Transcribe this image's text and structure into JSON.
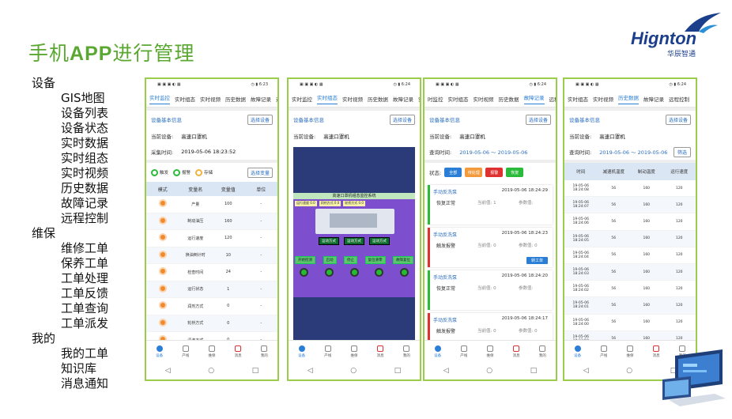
{
  "slide": {
    "title_cn1": "手机",
    "title_app": "APP",
    "title_cn2": "进行管理",
    "logo": "Hignton",
    "logo_sub": "华辰智通"
  },
  "menu": [
    {
      "type": "grp",
      "text": "设备"
    },
    {
      "type": "sub",
      "text": "GIS地图"
    },
    {
      "type": "sub",
      "text": "设备列表"
    },
    {
      "type": "sub",
      "text": "设备状态"
    },
    {
      "type": "sub",
      "text": "实时数据"
    },
    {
      "type": "sub",
      "text": "实时组态"
    },
    {
      "type": "sub",
      "text": "实时视频"
    },
    {
      "type": "sub",
      "text": "历史数据"
    },
    {
      "type": "sub",
      "text": "故障记录"
    },
    {
      "type": "sub",
      "text": "远程控制"
    },
    {
      "type": "grp",
      "text": "维保"
    },
    {
      "type": "sub",
      "text": "维修工单"
    },
    {
      "type": "sub",
      "text": "保养工单"
    },
    {
      "type": "sub",
      "text": "工单处理"
    },
    {
      "type": "sub",
      "text": "工单反馈"
    },
    {
      "type": "sub",
      "text": "工单查询"
    },
    {
      "type": "sub",
      "text": "工单派发"
    },
    {
      "type": "grp",
      "text": "我的"
    },
    {
      "type": "sub",
      "text": "我的工单"
    },
    {
      "type": "sub",
      "text": "知识库"
    },
    {
      "type": "sub",
      "text": "消息通知"
    }
  ],
  "nav": [
    "设备",
    "产线",
    "维保",
    "消息",
    "我的"
  ],
  "phone1": {
    "time": "6:23",
    "tabs": [
      "实时监控",
      "实时组态",
      "实时视频",
      "历史数据",
      "故障记录",
      "远程"
    ],
    "section": "设备基本信息",
    "select_btn": "选择设备",
    "device_label": "当前设备:",
    "device_value": "高速口罩机",
    "time_label": "采集时间:",
    "time_value": "2019-05-06 18:23:52",
    "legend": [
      "触发",
      "报警",
      "存储"
    ],
    "select_var": "选择变量",
    "headers": [
      "模式",
      "变量名",
      "变量值",
      "单位"
    ],
    "rows": [
      {
        "name": "产量",
        "value": "100",
        "unit": "-"
      },
      {
        "name": "制动油压",
        "value": "160",
        "unit": "-"
      },
      {
        "name": "运行速度",
        "value": "120",
        "unit": "-"
      },
      {
        "name": "换油倒计时",
        "value": "10",
        "unit": "-"
      },
      {
        "name": "检查时间",
        "value": "24",
        "unit": "-"
      },
      {
        "name": "运行状态",
        "value": "1",
        "unit": "-"
      },
      {
        "name": "润剂方式",
        "value": "0",
        "unit": "-"
      },
      {
        "name": "轮桥方式",
        "value": "0",
        "unit": "-"
      },
      {
        "name": "清洗方式",
        "value": "0",
        "unit": "-"
      }
    ]
  },
  "phone2": {
    "time": "6:24",
    "tabs": [
      "实时监控",
      "实时组态",
      "实时视频",
      "历史数据",
      "故障记录",
      "实时"
    ],
    "section": "设备基本信息",
    "select_btn": "选择设备",
    "device_label": "当前设备:",
    "device_value": "高速口罩机",
    "scada_title": "高速口罩机组态监控系统",
    "scada_bar": [
      "运行速度 0.0",
      "润剂方式 0.0",
      "轮桥方式 0.0"
    ],
    "btns": [
      "运动方式",
      "运动方式",
      "运动方式"
    ],
    "btns2": [
      "开始检测",
      "启动",
      "停止",
      "复位清零",
      "故障复位"
    ]
  },
  "phone3": {
    "time": "6:24",
    "tabs": [
      "时监控",
      "实时组态",
      "实时视频",
      "历史数据",
      "故障记录",
      "远程控制"
    ],
    "section": "设备基本信息",
    "select_btn": "选择设备",
    "device_label": "当前设备:",
    "device_value": "高速口罩机",
    "query_label": "查询时间:",
    "query_value": "2019-05-06 ～ 2019-05-06",
    "status_label": "状态:",
    "status_btns": [
      {
        "text": "全部",
        "color": "#2a7ed6"
      },
      {
        "text": "待处理",
        "color": "#f39a3d"
      },
      {
        "text": "报警",
        "color": "#e03131"
      },
      {
        "text": "恢复",
        "color": "#2bbb3a"
      }
    ],
    "cards": [
      {
        "title": "手动反洗泵",
        "time": "2019-05-06 18:24:29",
        "status": "恢复正常",
        "ph": "当前值: 1",
        "ph2": "参数值:",
        "turn": "",
        "red": false
      },
      {
        "title": "手动反洗泵",
        "time": "2019-05-06 18:24:23",
        "status": "触发报警",
        "ph": "当前值: 0",
        "ph2": "参数值: 0",
        "turn": "转工单",
        "red": true
      },
      {
        "title": "手动反洗泵",
        "time": "2019-05-06 18:24:20",
        "status": "恢复正常",
        "ph": "当前值: 0",
        "ph2": "参数值:",
        "turn": "",
        "red": false
      },
      {
        "title": "手动反洗泵",
        "time": "2019-05-06 18:24:17",
        "status": "触发报警",
        "ph": "当前值: 0",
        "ph2": "参数值: 0",
        "turn": "转工单",
        "red": true
      }
    ]
  },
  "phone4": {
    "time": "6:24",
    "tabs": [
      "实时组态",
      "实时视频",
      "历史数据",
      "故障记录",
      "远程控制"
    ],
    "section": "设备基本信息",
    "select_btn": "选择设备",
    "device_label": "当前设备:",
    "device_value": "高速口罩机",
    "query_label": "查询时间:",
    "query_value": "2019-05-06 ～ 2019-05-06",
    "filter_btn": "筛选",
    "headers": [
      "时间",
      "减速机温度",
      "制动温度",
      "运行速度"
    ],
    "rows": [
      [
        "19-05-06 18:24:08",
        "56",
        "160",
        "120"
      ],
      [
        "19-05-06 18:24:07",
        "56",
        "160",
        "120"
      ],
      [
        "19-05-06 18:24:06",
        "56",
        "160",
        "120"
      ],
      [
        "19-05-06 18:24:05",
        "56",
        "160",
        "120"
      ],
      [
        "19-05-06 18:24:04",
        "56",
        "160",
        "120"
      ],
      [
        "19-05-06 18:24:03",
        "56",
        "160",
        "120"
      ],
      [
        "19-05-06 18:24:02",
        "56",
        "160",
        "120"
      ],
      [
        "19-05-06 18:24:01",
        "56",
        "160",
        "120"
      ],
      [
        "19-05-06 18:24:00",
        "56",
        "160",
        "120"
      ],
      [
        "19-05-06 18:23:59",
        "56",
        "160",
        "120"
      ]
    ]
  }
}
